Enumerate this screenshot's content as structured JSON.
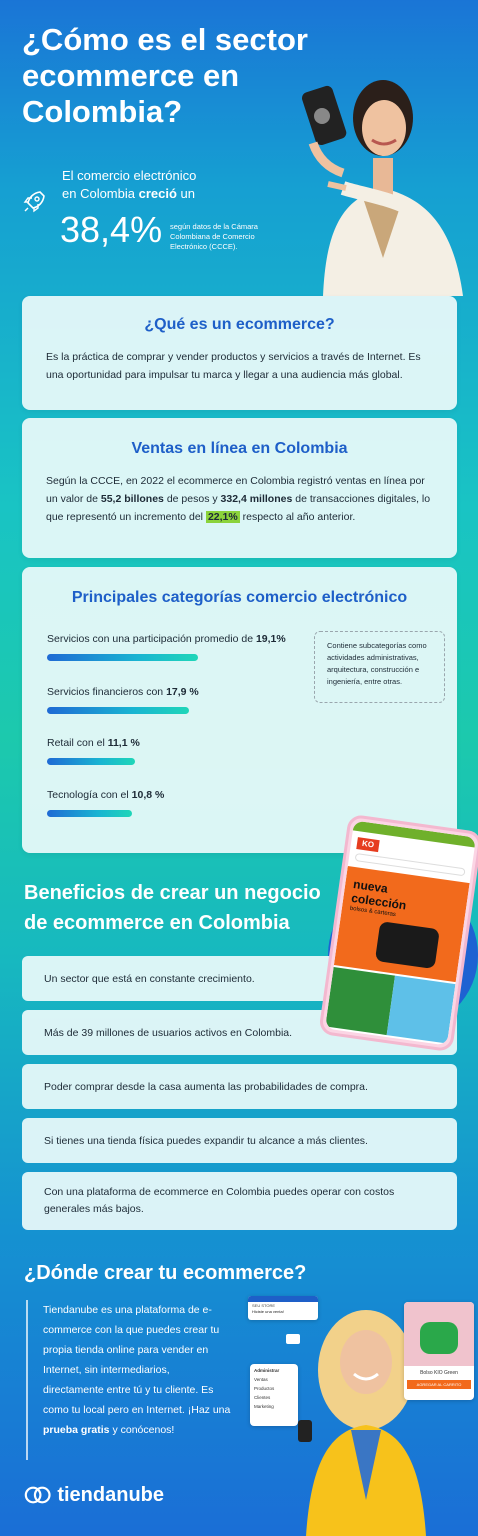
{
  "hero": {
    "title": "¿Cómo es el sector ecommerce en Colombia?",
    "stat_intro_pre": "El comercio electrónico en Colombia ",
    "stat_intro_bold": "creció",
    "stat_intro_post": " un",
    "stat_value": "38,4%",
    "stat_source": "según datos de la Cámara Colombiana de Comercio Electrónico (CCCE)."
  },
  "what": {
    "title": "¿Qué es un ecommerce?",
    "text": "Es la práctica de comprar y vender productos y servicios a través de Internet. Es una oportunidad para impulsar tu marca y llegar a una audiencia más global."
  },
  "sales": {
    "title": "Ventas en línea en Colombia",
    "p1": "Según la CCCE, en 2022 el ecommerce en Colombia registró ventas en línea por un valor de ",
    "b1": "55,2 billones",
    "p2": " de pesos y ",
    "b2": "332,4 millones",
    "p3": " de transacciones digitales, lo que representó un incremento del ",
    "hl": "22,1%",
    "p4": " respecto al año anterior."
  },
  "categories": {
    "title": "Principales categorías comercio electrónico",
    "items": [
      {
        "pre": "Servicios con una participación promedio de ",
        "value": "19,1%",
        "share": 19.1
      },
      {
        "pre": "Servicios financieros con ",
        "value": "17,9 %",
        "share": 17.9
      },
      {
        "pre": "Retail con el ",
        "value": "11,1 %",
        "share": 11.1
      },
      {
        "pre": "Tecnología con el ",
        "value": "10,8 %",
        "share": 10.8
      }
    ],
    "note": "Contiene subcategorías como actividades administrativas, arquitectura, construcción e ingeniería, entre otras."
  },
  "benefits": {
    "title": "Beneficios de crear un negocio de ecommerce en Colombia",
    "items": [
      "Un sector que está en constante crecimiento.",
      "Más de 39 millones de usuarios activos en Colombia.",
      "Poder comprar desde la casa aumenta las probabilidades de compra.",
      "Si tienes una tienda física puedes expandir tu alcance a más clientes.",
      "Con una plataforma de ecommerce en Colombia puedes operar con costos generales más bajos."
    ],
    "phone": {
      "logo": "KO",
      "banner_1": "nueva",
      "banner_2": "colección",
      "banner_3": "bolsos & carteras"
    }
  },
  "where": {
    "title": "¿Dónde crear tu ecommerce?",
    "text_pre": "Tiendanube es una plataforma de e-commerce con la que puedes crear tu propia tienda online para vender en Internet, sin intermediarios, directamente entre tú y tu cliente. Es como tu local pero en Internet. ¡Haz una ",
    "text_bold": "prueba gratis",
    "text_post": " y conócenos!",
    "admin_title": "Administrar",
    "admin_items": [
      "Ventas",
      "Productos",
      "Clientes",
      "Marketing"
    ],
    "product_name": "Bolso KIO Green",
    "product_button": "AGREGAR AL CARRITO",
    "notif_title": "SEU STORE",
    "notif_text": "Hiciste una venta!"
  },
  "brand": {
    "name": "tiendanube"
  },
  "colors": {
    "accent_blue": "#1e5fc8",
    "highlight_green": "#8bd33b",
    "card_bg": "#ebfafa"
  }
}
